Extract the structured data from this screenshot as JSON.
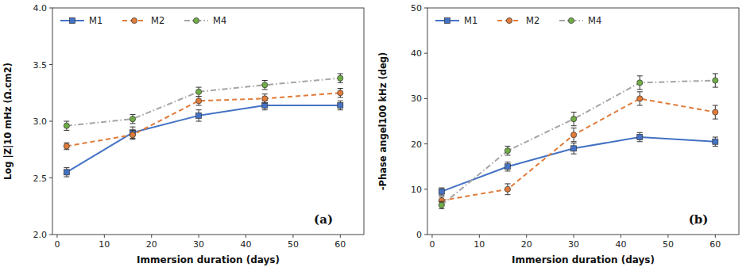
{
  "chart_data": [
    {
      "type": "line",
      "annotations": [
        "(a)"
      ],
      "x_label": "Immersion duration (days)",
      "y_label": "Log |Z|10 mHz (Ω.cm2)",
      "x": [
        2,
        16,
        30,
        44,
        60
      ],
      "xlim": [
        -1,
        65
      ],
      "xticks": [
        0,
        10,
        20,
        30,
        40,
        50,
        60
      ],
      "ylim": [
        2.0,
        4.0
      ],
      "yticks": [
        {
          "value": 2.0,
          "label": "2.0"
        },
        {
          "value": 2.5,
          "label": "2.5"
        },
        {
          "value": 3.0,
          "label": "3.0"
        },
        {
          "value": 3.5,
          "label": "3.5"
        },
        {
          "value": 4.0,
          "label": "4.0"
        }
      ],
      "grid": false,
      "legend": "upper-left",
      "series": [
        {
          "name": "M1",
          "color": "#4472C4",
          "line_style": "solid",
          "marker": "square",
          "colors": [
            "#4472C4",
            "#4472C4",
            "#4472C4",
            "#4472C4",
            "#4472C4"
          ],
          "values": [
            2.55,
            2.9,
            3.05,
            3.14,
            3.14
          ],
          "errors": [
            0.04,
            0.05,
            0.05,
            0.04,
            0.04
          ]
        },
        {
          "name": "M2",
          "color": "#E07B39",
          "line_style": "dashed",
          "marker": "circle",
          "colors": [
            "#E07B39",
            "#E07B39",
            "#E07B39",
            "#E07B39",
            "#E07B39"
          ],
          "values": [
            2.78,
            2.88,
            3.18,
            3.2,
            3.25
          ],
          "errors": [
            0.03,
            0.04,
            0.04,
            0.04,
            0.04
          ]
        },
        {
          "name": "M4",
          "color": "#A5A5A5",
          "line_style": "dashdot",
          "marker": "circle",
          "colors": [
            "#70AD47",
            "#70AD47",
            "#70AD47",
            "#70AD47",
            "#70AD47"
          ],
          "values": [
            2.96,
            3.02,
            3.26,
            3.32,
            3.38
          ],
          "errors": [
            0.04,
            0.04,
            0.04,
            0.04,
            0.04
          ]
        }
      ]
    },
    {
      "type": "line",
      "annotations": [
        "(b)"
      ],
      "x_label": "Immersion duration (days)",
      "y_label": "-Phase angel100 kHz (deg)",
      "x": [
        2,
        16,
        30,
        44,
        60
      ],
      "xlim": [
        -1,
        65
      ],
      "xticks": [
        0,
        10,
        20,
        30,
        40,
        50,
        60
      ],
      "ylim": [
        0,
        50
      ],
      "yticks": [
        0,
        10,
        20,
        30,
        40,
        50
      ],
      "grid": false,
      "legend": "upper-left",
      "series": [
        {
          "name": "M1",
          "color": "#4472C4",
          "line_style": "solid",
          "marker": "square",
          "colors": [
            "#4472C4",
            "#4472C4",
            "#4472C4",
            "#4472C4",
            "#4472C4"
          ],
          "values": [
            9.5,
            15.0,
            19.0,
            21.5,
            20.5
          ],
          "errors": [
            0.8,
            1.0,
            1.2,
            1.0,
            1.0
          ]
        },
        {
          "name": "M2",
          "color": "#E07B39",
          "line_style": "dashed",
          "marker": "circle",
          "colors": [
            "#E07B39",
            "#E07B39",
            "#E07B39",
            "#E07B39",
            "#E07B39"
          ],
          "values": [
            7.5,
            10.0,
            22.0,
            30.0,
            27.0
          ],
          "errors": [
            0.8,
            1.2,
            1.5,
            1.5,
            1.5
          ]
        },
        {
          "name": "M4",
          "color": "#A5A5A5",
          "line_style": "dashdot",
          "marker": "circle",
          "colors": [
            "#70AD47",
            "#70AD47",
            "#70AD47",
            "#70AD47",
            "#70AD47"
          ],
          "values": [
            6.5,
            18.5,
            25.5,
            33.5,
            34.0
          ],
          "errors": [
            0.8,
            1.0,
            1.5,
            1.5,
            1.5
          ]
        }
      ]
    }
  ]
}
